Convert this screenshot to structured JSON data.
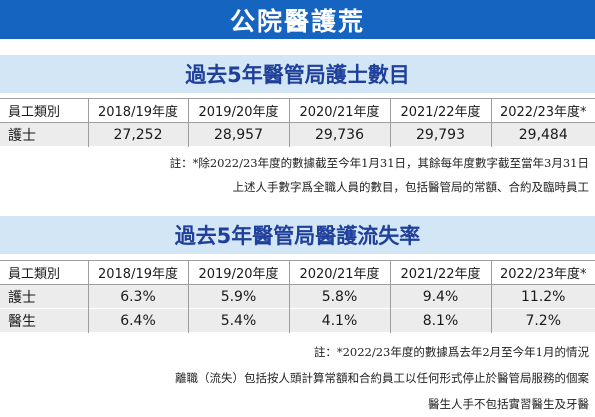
{
  "banner": {
    "title": "公院醫護荒"
  },
  "nurses_table": {
    "title": "過去5年醫管局護士數目",
    "headers": [
      "員工類別",
      "2018/19年度",
      "2019/20年度",
      "2020/21年度",
      "2021/22年度",
      "2022/23年度*"
    ],
    "rows": [
      {
        "label": "護士",
        "values": [
          "27,252",
          "28,957",
          "29,736",
          "29,793",
          "29,484"
        ]
      }
    ],
    "notes": [
      "註：*除2022/23年度的數據截至今年1月31日，其餘每年度數字截至當年3月31日",
      "上述人手數字爲全職人員的數目，包括醫管局的常額、合約及臨時員工"
    ]
  },
  "turnover_table": {
    "title": "過去5年醫管局醫護流失率",
    "headers": [
      "員工類別",
      "2018/19年度",
      "2019/20年度",
      "2020/21年度",
      "2021/22年度",
      "2022/23年度*"
    ],
    "rows": [
      {
        "label": "護士",
        "values": [
          "6.3%",
          "5.9%",
          "5.8%",
          "9.4%",
          "11.2%"
        ]
      },
      {
        "label": "醫生",
        "values": [
          "6.4%",
          "5.4%",
          "4.1%",
          "8.1%",
          "7.2%"
        ]
      }
    ],
    "notes": [
      "註：*2022/23年度的數據爲去年2月至今年1月的情況",
      "離職（流失）包括按人頭計算常額和合約員工以任何形式停止於醫管局服務的個案",
      "醫生人手不包括實習醫生及牙醫"
    ]
  },
  "colors": {
    "banner_bg": "#1565c0",
    "section_bg": "#d3e6f5",
    "section_text": "#1f3f9a",
    "row_bg": "#ececec"
  }
}
